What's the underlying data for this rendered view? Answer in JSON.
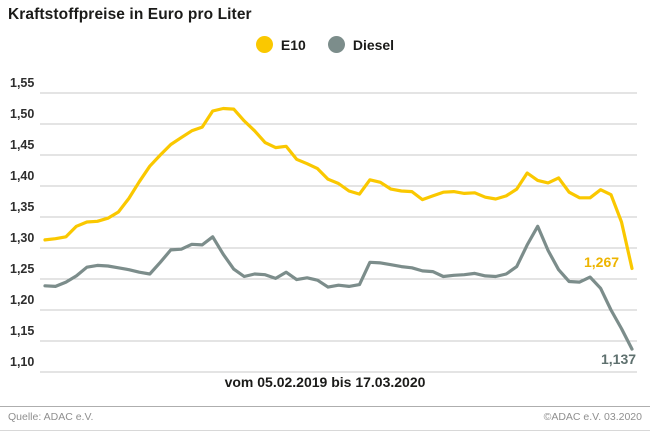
{
  "header": {
    "title": "Kraftstoffpreise in Euro pro Liter"
  },
  "legend": {
    "items": [
      {
        "label": "E10",
        "color": "#fac800"
      },
      {
        "label": "Diesel",
        "color": "#7c8d8b"
      }
    ]
  },
  "chart_data": {
    "type": "line",
    "title": "Kraftstoffpreise in Euro pro Liter",
    "xlabel": "vom 05.02.2019 bis 17.03.2020",
    "ylabel": "Euro pro Liter",
    "x_start": "05.02.2019",
    "x_end": "17.03.2020",
    "ylim": [
      1.1,
      1.55
    ],
    "y_ticks": [
      "1,55",
      "1,50",
      "1,45",
      "1,40",
      "1,35",
      "1,30",
      "1,25",
      "1,20",
      "1,15",
      "1,10"
    ],
    "grid": true,
    "legend_position": "top",
    "grid_color": "#c9c9c9",
    "series": [
      {
        "name": "E10",
        "color": "#fac800",
        "end_label": "1,267",
        "values": [
          1.313,
          1.315,
          1.318,
          1.335,
          1.342,
          1.343,
          1.348,
          1.358,
          1.38,
          1.407,
          1.432,
          1.45,
          1.467,
          1.478,
          1.489,
          1.495,
          1.521,
          1.525,
          1.524,
          1.505,
          1.489,
          1.47,
          1.462,
          1.464,
          1.443,
          1.436,
          1.428,
          1.411,
          1.404,
          1.392,
          1.387,
          1.41,
          1.406,
          1.395,
          1.392,
          1.391,
          1.378,
          1.384,
          1.39,
          1.391,
          1.388,
          1.389,
          1.382,
          1.379,
          1.384,
          1.395,
          1.421,
          1.409,
          1.405,
          1.413,
          1.39,
          1.381,
          1.381,
          1.394,
          1.386,
          1.342,
          1.267
        ]
      },
      {
        "name": "Diesel",
        "color": "#7c8d8b",
        "end_label": "1,137",
        "values": [
          1.239,
          1.238,
          1.245,
          1.255,
          1.269,
          1.272,
          1.271,
          1.268,
          1.265,
          1.261,
          1.258,
          1.277,
          1.297,
          1.298,
          1.306,
          1.305,
          1.318,
          1.29,
          1.266,
          1.254,
          1.258,
          1.257,
          1.251,
          1.261,
          1.249,
          1.252,
          1.248,
          1.237,
          1.24,
          1.238,
          1.241,
          1.277,
          1.276,
          1.273,
          1.27,
          1.268,
          1.263,
          1.262,
          1.254,
          1.256,
          1.257,
          1.259,
          1.255,
          1.254,
          1.258,
          1.27,
          1.305,
          1.335,
          1.296,
          1.265,
          1.246,
          1.245,
          1.253,
          1.235,
          1.2,
          1.17,
          1.137
        ]
      }
    ]
  },
  "footer": {
    "source": "Quelle: ADAC e.V.",
    "copyright": "©ADAC e.V.  03.2020"
  }
}
